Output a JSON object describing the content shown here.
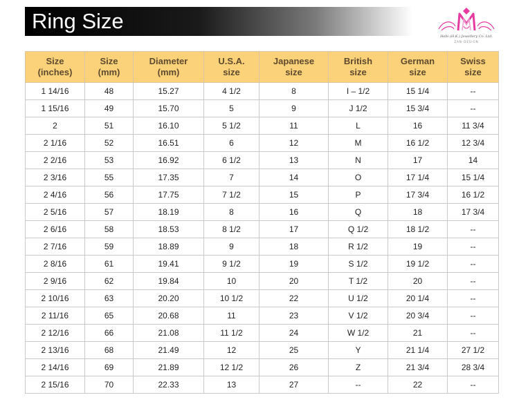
{
  "title": "Ring Size",
  "logo": {
    "text_line1": "Hebi (H.K.) Jewellery Co. Ltd.",
    "text_line2": "ZAN-DESIGN",
    "accent_color": "#e63aa0"
  },
  "headers": [
    [
      "Size",
      "(inches)"
    ],
    [
      "Size",
      "(mm)"
    ],
    [
      "Diameter",
      "(mm)"
    ],
    [
      "U.S.A.",
      "size"
    ],
    [
      "Japanese",
      "size"
    ],
    [
      "British",
      "size"
    ],
    [
      "German",
      "size"
    ],
    [
      "Swiss",
      "size"
    ]
  ],
  "rows": [
    [
      "1 14/16",
      "48",
      "15.27",
      "4 1/2",
      "8",
      "I – 1/2",
      "15 1/4",
      "--"
    ],
    [
      "1 15/16",
      "49",
      "15.70",
      "5",
      "9",
      "J 1/2",
      "15 3/4",
      "--"
    ],
    [
      "2",
      "51",
      "16.10",
      "5 1/2",
      "11",
      "L",
      "16",
      "11 3/4"
    ],
    [
      "2 1/16",
      "52",
      "16.51",
      "6",
      "12",
      "M",
      "16 1/2",
      "12 3/4"
    ],
    [
      "2 2/16",
      "53",
      "16.92",
      "6 1/2",
      "13",
      "N",
      "17",
      "14"
    ],
    [
      "2 3/16",
      "55",
      "17.35",
      "7",
      "14",
      "O",
      "17 1/4",
      "15 1/4"
    ],
    [
      "2 4/16",
      "56",
      "17.75",
      "7 1/2",
      "15",
      "P",
      "17 3/4",
      "16 1/2"
    ],
    [
      "2 5/16",
      "57",
      "18.19",
      "8",
      "16",
      "Q",
      "18",
      "17 3/4"
    ],
    [
      "2 6/16",
      "58",
      "18.53",
      "8 1/2",
      "17",
      "Q 1/2",
      "18 1/2",
      "--"
    ],
    [
      "2 7/16",
      "59",
      "18.89",
      "9",
      "18",
      "R 1/2",
      "19",
      "--"
    ],
    [
      "2 8/16",
      "61",
      "19.41",
      "9 1/2",
      "19",
      "S 1/2",
      "19 1/2",
      "--"
    ],
    [
      "2 9/16",
      "62",
      "19.84",
      "10",
      "20",
      "T 1/2",
      "20",
      "--"
    ],
    [
      "2 10/16",
      "63",
      "20.20",
      "10 1/2",
      "22",
      "U 1/2",
      "20 1/4",
      "--"
    ],
    [
      "2 11/16",
      "65",
      "20.68",
      "11",
      "23",
      "V 1/2",
      "20 3/4",
      "--"
    ],
    [
      "2 12/16",
      "66",
      "21.08",
      "11 1/2",
      "24",
      "W 1/2",
      "21",
      "--"
    ],
    [
      "2 13/16",
      "68",
      "21.49",
      "12",
      "25",
      "Y",
      "21 1/4",
      "27 1/2"
    ],
    [
      "2 14/16",
      "69",
      "21.89",
      "12 1/2",
      "26",
      "Z",
      "21 3/4",
      "28 3/4"
    ],
    [
      "2 15/16",
      "70",
      "22.33",
      "13",
      "27",
      "--",
      "22",
      "--"
    ]
  ]
}
